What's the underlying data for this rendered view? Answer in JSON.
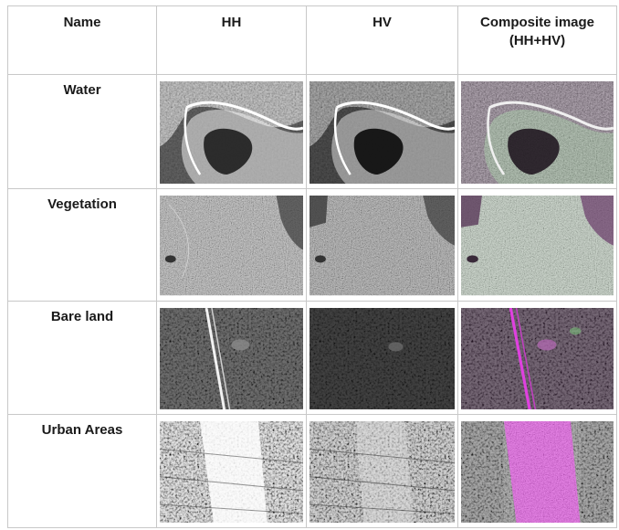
{
  "table": {
    "headers": {
      "name": "Name",
      "hh": "HH",
      "hv": "HV",
      "composite_line1": "Composite image",
      "composite_line2": "(HH+HV)"
    },
    "rows": [
      {
        "name": "Water",
        "scene": "water"
      },
      {
        "name": "Vegetation",
        "scene": "vegetation"
      },
      {
        "name": "Bare land",
        "scene": "bare-land"
      },
      {
        "name": "Urban Areas",
        "scene": "urban"
      }
    ]
  },
  "colors": {
    "border": "#c8c8c8",
    "composite_magenta": "#d23ad2",
    "composite_green": "#7fd47f"
  }
}
